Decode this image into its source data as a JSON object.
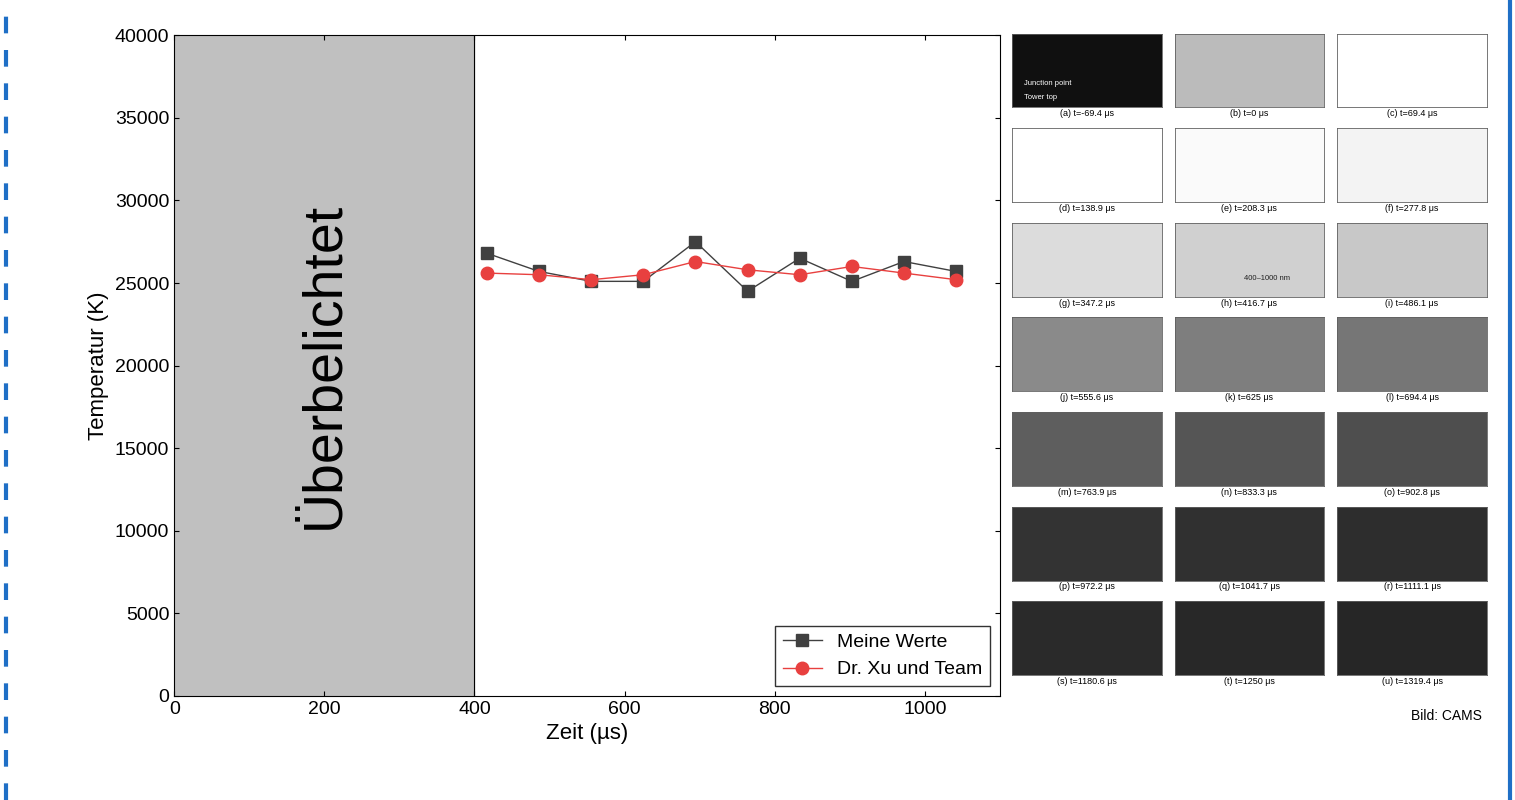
{
  "chart_data": {
    "type": "line",
    "xlabel": "Zeit (µs)",
    "ylabel": "Temperatur (K)",
    "x": [
      416.7,
      486.1,
      555.6,
      625,
      694.4,
      763.9,
      833.3,
      902.8,
      972.2,
      1041.7
    ],
    "series": [
      {
        "name": "Meine Werte",
        "color": "#404040",
        "marker": "square",
        "line_style": "solid",
        "values": [
          26800,
          25700,
          25100,
          25100,
          27500,
          24500,
          26500,
          25100,
          26300,
          25700
        ]
      },
      {
        "name": "Dr. Xu und Team",
        "color": "#e8403f",
        "marker": "circle",
        "line_style": "solid",
        "values": [
          25600,
          25500,
          25200,
          25500,
          26300,
          25800,
          25500,
          26000,
          25600,
          25200
        ]
      }
    ],
    "overexposed_region": {
      "x": [
        0,
        400
      ],
      "label": "Überbelichtet",
      "color": "#c0c0c0"
    },
    "xlim": [
      0,
      1100
    ],
    "xticks": [
      0,
      200,
      400,
      600,
      800,
      1000
    ],
    "ylim": [
      0,
      40000
    ],
    "yticks": [
      0,
      5000,
      10000,
      15000,
      20000,
      25000,
      30000,
      35000,
      40000
    ],
    "legend": "lower right",
    "grid": false,
    "image_panels": {
      "captions": [
        "(a) t=-69.4 μs",
        "(b) t=0 μs",
        "(c) t=69.4 μs",
        "(d) t=138.9 μs",
        "(e) t=208.3 μs",
        "(f) t=277.8 μs",
        "(g) t=347.2 μs",
        "(h) t=416.7 μs",
        "(i) t=486.1 μs",
        "(j) t=555.6 μs",
        "(k) t=625 μs",
        "(l) t=694.4 μs",
        "(m) t=763.9 μs",
        "(n) t=833.3 μs",
        "(o) t=902.8 μs",
        "(p) t=972.2 μs",
        "(q) t=1041.7 μs",
        "(r) t=1111.1 μs",
        "(s) t=1180.6 μs",
        "(t) t=1250 μs",
        "(u) t=1319.4 μs"
      ],
      "notes": {
        "0": [
          "Junction point",
          "Tower top"
        ],
        "7": [
          "400–1000 nm"
        ]
      },
      "credit": "Bild: CAMS"
    }
  }
}
